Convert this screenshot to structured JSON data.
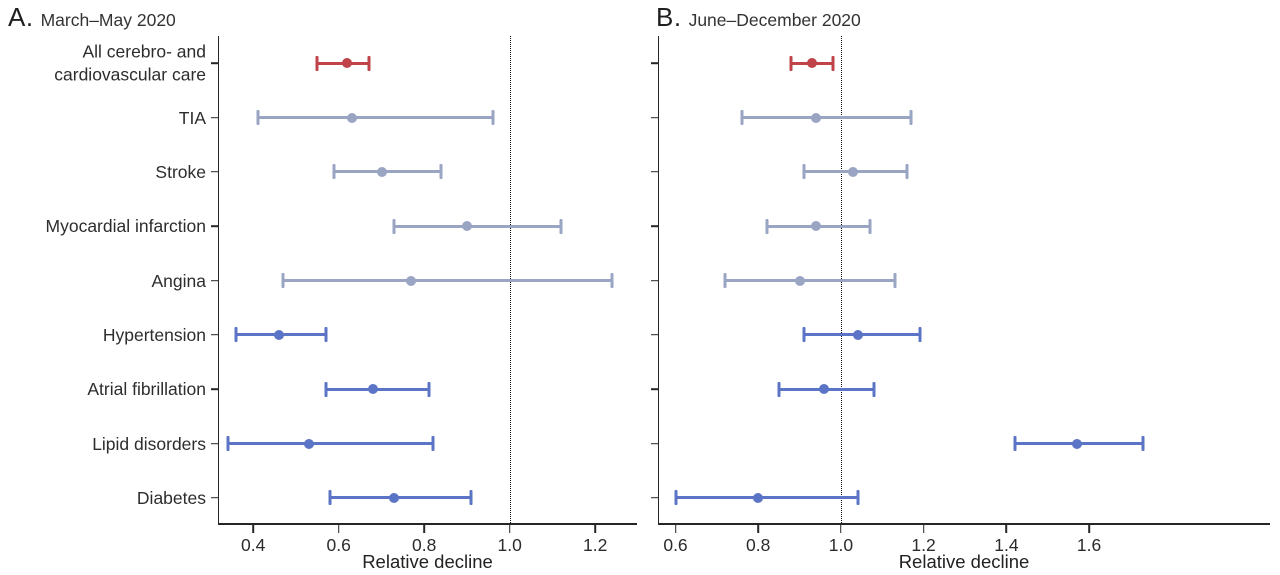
{
  "colors": {
    "highlight": "#bf4349",
    "muted_blue": "#9aa5c3",
    "accent_blue": "#5b74c6",
    "axis": "#262626"
  },
  "categories": [
    "All cerebro- and\ncardiovascular care",
    "TIA",
    "Stroke",
    "Myocardial infarction",
    "Angina",
    "Hypertension",
    "Atrial fibrillation",
    "Lipid disorders",
    "Diabetes"
  ],
  "chart_data": [
    {
      "type": "forest",
      "panel_letter": "A.",
      "title": "March–May 2020",
      "xlabel": "Relative decline",
      "xlim": [
        0.32,
        1.3
      ],
      "xticks": [
        0.4,
        0.6,
        0.8,
        1.0,
        1.2
      ],
      "refline": 1.0,
      "grid": false,
      "legend": "none",
      "points": [
        {
          "label": "All cerebro- and cardiovascular care",
          "estimate": 0.62,
          "ci_low": 0.55,
          "ci_high": 0.67,
          "color": "highlight"
        },
        {
          "label": "TIA",
          "estimate": 0.63,
          "ci_low": 0.41,
          "ci_high": 0.96,
          "color": "muted_blue"
        },
        {
          "label": "Stroke",
          "estimate": 0.7,
          "ci_low": 0.59,
          "ci_high": 0.84,
          "color": "muted_blue"
        },
        {
          "label": "Myocardial infarction",
          "estimate": 0.9,
          "ci_low": 0.73,
          "ci_high": 1.12,
          "color": "muted_blue"
        },
        {
          "label": "Angina",
          "estimate": 0.77,
          "ci_low": 0.47,
          "ci_high": 1.24,
          "color": "muted_blue"
        },
        {
          "label": "Hypertension",
          "estimate": 0.46,
          "ci_low": 0.36,
          "ci_high": 0.57,
          "color": "accent_blue"
        },
        {
          "label": "Atrial fibrillation",
          "estimate": 0.68,
          "ci_low": 0.57,
          "ci_high": 0.81,
          "color": "accent_blue"
        },
        {
          "label": "Lipid disorders",
          "estimate": 0.53,
          "ci_low": 0.34,
          "ci_high": 0.82,
          "color": "accent_blue"
        },
        {
          "label": "Diabetes",
          "estimate": 0.73,
          "ci_low": 0.58,
          "ci_high": 0.91,
          "color": "accent_blue"
        }
      ]
    },
    {
      "type": "forest",
      "panel_letter": "B.",
      "title": "June–December 2020",
      "xlabel": "Relative decline",
      "xlim": [
        0.56,
        2.04
      ],
      "xticks": [
        0.6,
        0.8,
        1.0,
        1.2,
        1.4,
        1.6
      ],
      "refline": 1.0,
      "grid": false,
      "legend": "none",
      "points": [
        {
          "label": "All cerebro- and cardiovascular care",
          "estimate": 0.93,
          "ci_low": 0.88,
          "ci_high": 0.98,
          "color": "highlight"
        },
        {
          "label": "TIA",
          "estimate": 0.94,
          "ci_low": 0.76,
          "ci_high": 1.17,
          "color": "muted_blue"
        },
        {
          "label": "Stroke",
          "estimate": 1.03,
          "ci_low": 0.91,
          "ci_high": 1.16,
          "color": "muted_blue"
        },
        {
          "label": "Myocardial infarction",
          "estimate": 0.94,
          "ci_low": 0.82,
          "ci_high": 1.07,
          "color": "muted_blue"
        },
        {
          "label": "Angina",
          "estimate": 0.9,
          "ci_low": 0.72,
          "ci_high": 1.13,
          "color": "muted_blue"
        },
        {
          "label": "Hypertension",
          "estimate": 1.04,
          "ci_low": 0.91,
          "ci_high": 1.19,
          "color": "accent_blue"
        },
        {
          "label": "Atrial fibrillation",
          "estimate": 0.96,
          "ci_low": 0.85,
          "ci_high": 1.08,
          "color": "accent_blue"
        },
        {
          "label": "Lipid disorders",
          "estimate": 1.57,
          "ci_low": 1.42,
          "ci_high": 1.73,
          "color": "accent_blue"
        },
        {
          "label": "Diabetes",
          "estimate": 0.8,
          "ci_low": 0.6,
          "ci_high": 1.04,
          "color": "accent_blue"
        }
      ]
    }
  ]
}
